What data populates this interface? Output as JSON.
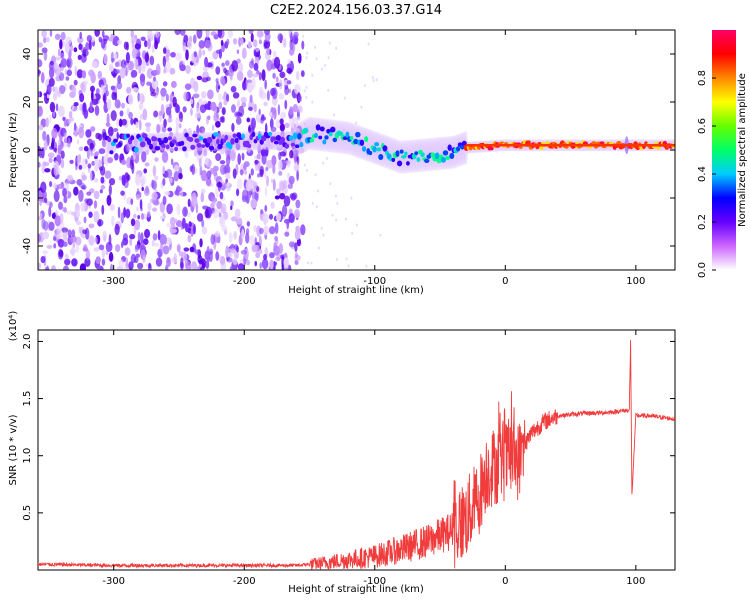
{
  "title": "C2E2.2024.156.03.37.G14",
  "chart_data": [
    {
      "type": "heatmap",
      "xlabel": "Height of straight line (km)",
      "ylabel": "Frequency (Hz)",
      "xlim": [
        -358,
        130
      ],
      "ylim": [
        -50,
        50
      ],
      "x_ticks": [
        -300,
        -200,
        -100,
        0,
        100
      ],
      "y_ticks": [
        -40,
        -20,
        0,
        20,
        40
      ],
      "colorbar": {
        "label": "Normalized spectral amplitude",
        "range": [
          0,
          1
        ],
        "ticks": [
          "0.0",
          "0.2",
          "0.4",
          "0.6",
          "0.8"
        ],
        "colors": [
          "#ffffff",
          "#cc66ff",
          "#6600ff",
          "#0000ff",
          "#00ccff",
          "#00ff66",
          "#66ff00",
          "#ffff00",
          "#ff8800",
          "#ff0000",
          "#ff0066"
        ]
      },
      "ridge": [
        {
          "x": -300,
          "freq": 3
        },
        {
          "x": -160,
          "freq": 4
        },
        {
          "x": -150,
          "freq": 7
        },
        {
          "x": -120,
          "freq": 5
        },
        {
          "x": -100,
          "freq": 1
        },
        {
          "x": -80,
          "freq": -3
        },
        {
          "x": -60,
          "freq": -2
        },
        {
          "x": -40,
          "freq": -1
        },
        {
          "x": -30,
          "freq": 1
        },
        {
          "x": 0,
          "freq": 2
        },
        {
          "x": 130,
          "freq": 2
        }
      ]
    },
    {
      "type": "line",
      "xlabel": "Height of straight line (km)",
      "ylabel": "SNR (10 * v/v)",
      "y_multiplier": "(x10⁴)",
      "xlim": [
        -358,
        130
      ],
      "ylim": [
        0,
        2.1
      ],
      "x_ticks": [
        -300,
        -200,
        -100,
        0,
        100
      ],
      "y_ticks": [
        "0.5",
        "1.0",
        "1.5",
        "2.0"
      ],
      "line_color": "#f03c3c",
      "series": [
        {
          "x": [
            -358,
            -300,
            -250,
            -200,
            -160,
            -140,
            -120,
            -100,
            -80,
            -60,
            -40,
            -30,
            -20,
            -15,
            -10,
            0,
            5,
            10,
            15,
            20,
            30,
            40,
            60,
            80,
            95,
            96,
            97,
            100,
            110,
            130
          ],
          "values": [
            0.05,
            0.04,
            0.04,
            0.04,
            0.04,
            0.06,
            0.09,
            0.12,
            0.18,
            0.25,
            0.35,
            0.45,
            0.65,
            0.85,
            0.9,
            0.95,
            1.0,
            0.95,
            1.1,
            1.2,
            1.3,
            1.35,
            1.37,
            1.38,
            1.4,
            2.0,
            0.65,
            1.35,
            1.35,
            1.32
          ]
        }
      ]
    }
  ]
}
